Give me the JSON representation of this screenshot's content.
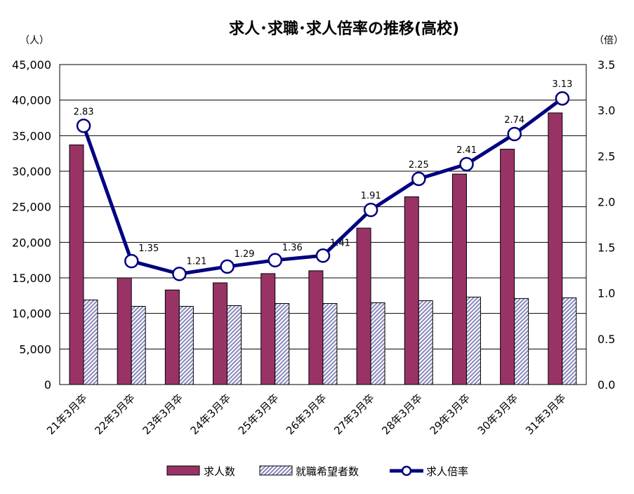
{
  "chart_data": {
    "type": "bar",
    "title": "求人･求職･求人倍率の推移(高校)",
    "left_unit": "（人）",
    "right_unit": "（倍）",
    "categories": [
      "21年3月卒",
      "22年3月卒",
      "23年3月卒",
      "24年3月卒",
      "25年3月卒",
      "26年3月卒",
      "27年3月卒",
      "28年3月卒",
      "29年3月卒",
      "30年3月卒",
      "31年3月卒"
    ],
    "series": [
      {
        "name": "求人数",
        "type": "bar",
        "axis": "left",
        "color": "#993366",
        "values": [
          33700,
          15000,
          13300,
          14300,
          15600,
          16000,
          22000,
          26400,
          29600,
          33100,
          38200
        ]
      },
      {
        "name": "就職希望者数",
        "type": "bar",
        "axis": "left",
        "color": "#9999CC",
        "pattern": "diagonal-hatch",
        "values": [
          11900,
          11000,
          11000,
          11100,
          11400,
          11400,
          11500,
          11800,
          12300,
          12100,
          12200
        ]
      },
      {
        "name": "求人倍率",
        "type": "line",
        "axis": "right",
        "color": "#000080",
        "values": [
          2.83,
          1.35,
          1.21,
          1.29,
          1.36,
          1.41,
          1.91,
          2.25,
          2.41,
          2.74,
          3.13
        ],
        "labels": [
          "2.83",
          "1.35",
          "1.21",
          "1.29",
          "1.36",
          "1.41",
          "1.91",
          "2.25",
          "2.41",
          "2.74",
          "3.13"
        ]
      }
    ],
    "y_left": {
      "min": 0,
      "max": 45000,
      "ticks": [
        0,
        5000,
        10000,
        15000,
        20000,
        25000,
        30000,
        35000,
        40000,
        45000
      ],
      "tick_labels": [
        "0",
        "5,000",
        "10,000",
        "15,000",
        "20,000",
        "25,000",
        "30,000",
        "35,000",
        "40,000",
        "45,000"
      ]
    },
    "y_right": {
      "min": 0,
      "max": 3.5,
      "ticks": [
        0,
        0.5,
        1.0,
        1.5,
        2.0,
        2.5,
        3.0,
        3.5
      ],
      "tick_labels": [
        "0.0",
        "0.5",
        "1.0",
        "1.5",
        "2.0",
        "2.5",
        "3.0",
        "3.5"
      ]
    },
    "grid": true,
    "legend_position": "bottom"
  }
}
